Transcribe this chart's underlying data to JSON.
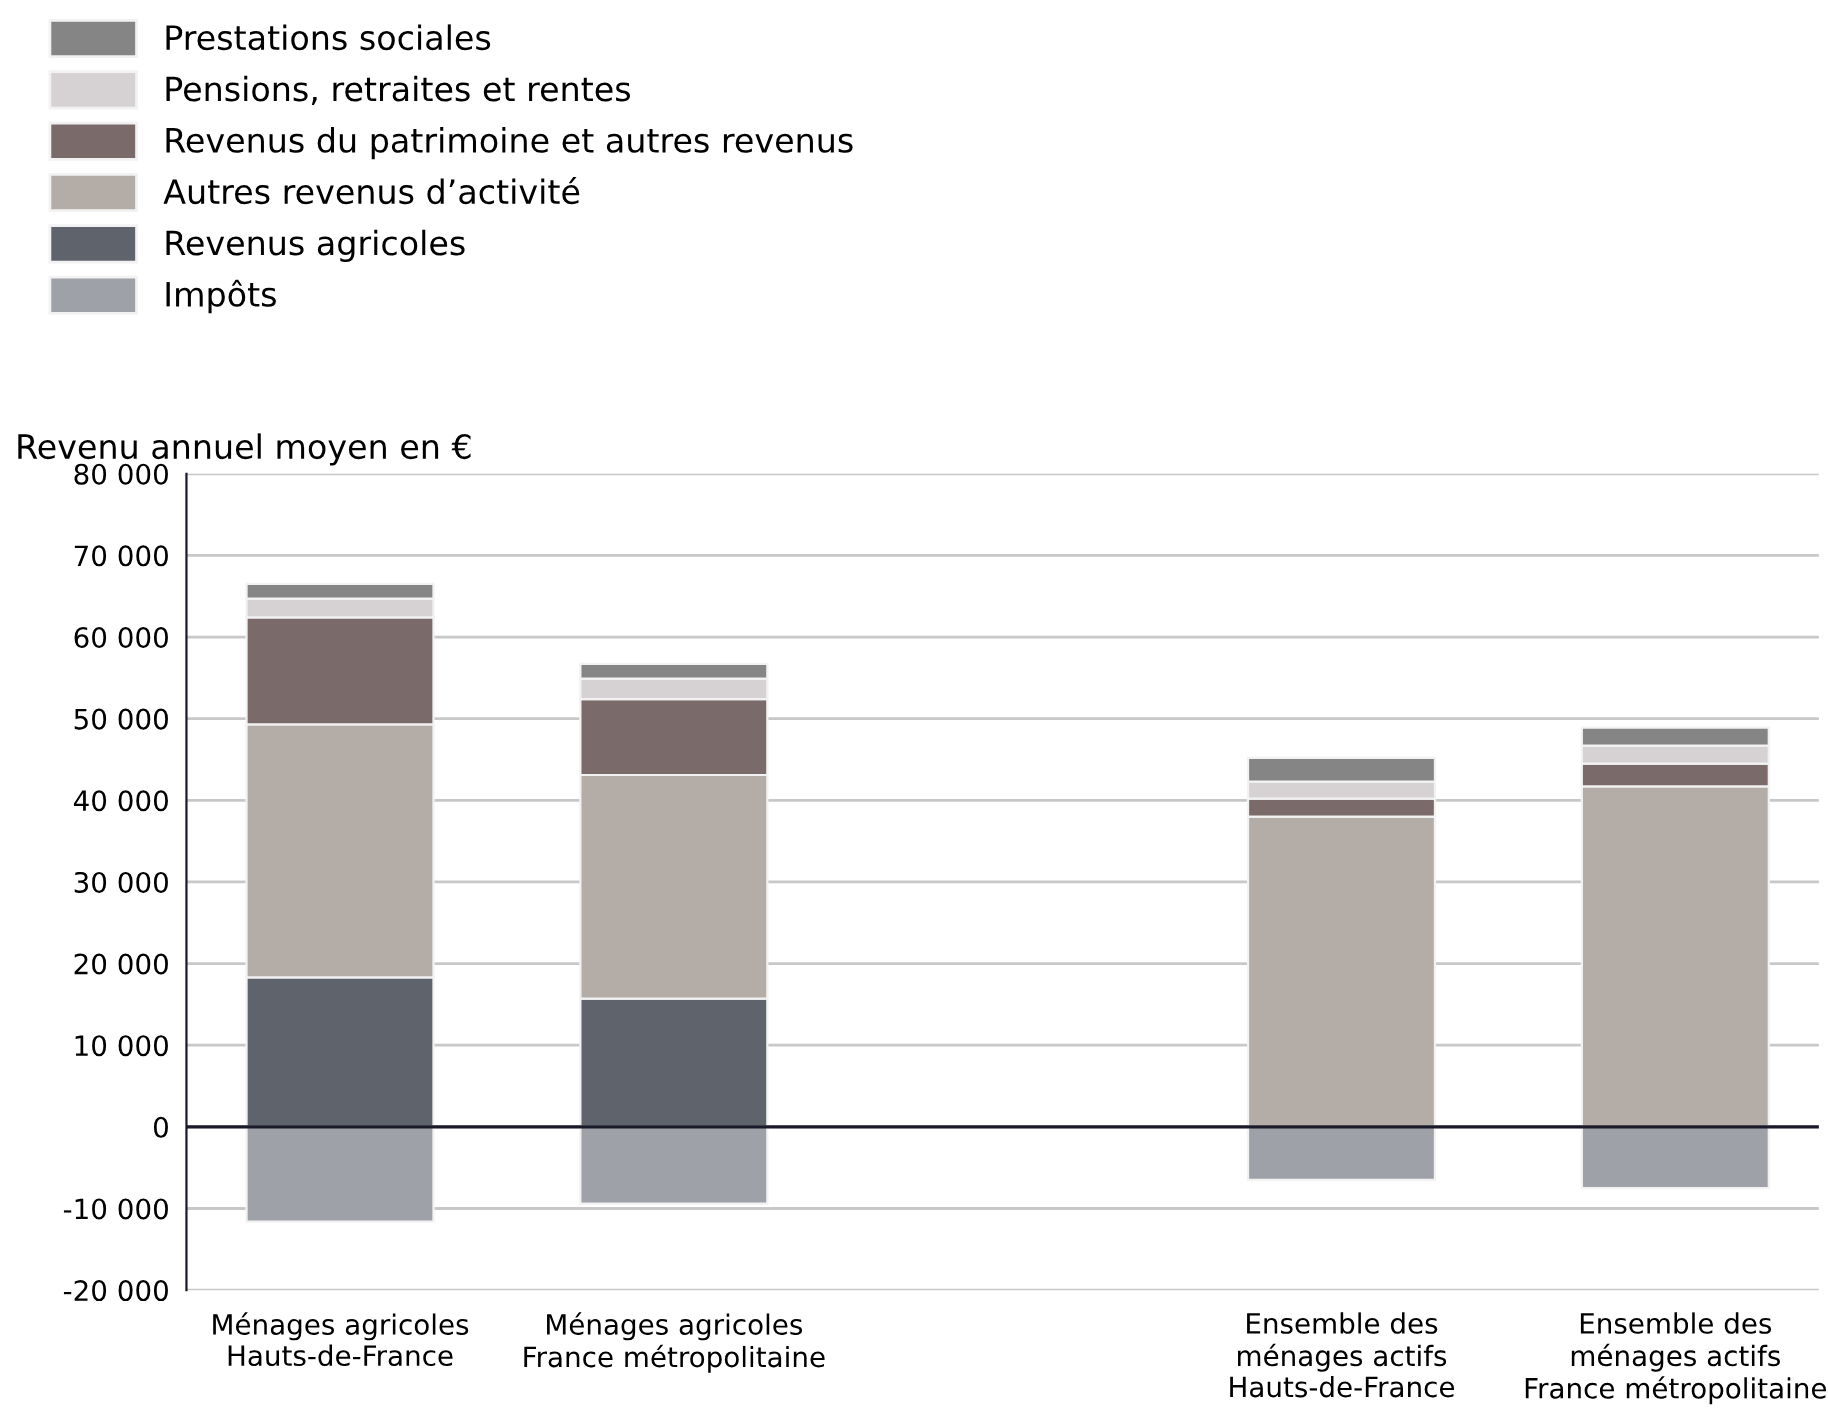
{
  "chart_data": {
    "type": "bar",
    "stacked": true,
    "ylabel": "Revenu annuel moyen en €",
    "categories": [
      "Ménages agricoles\nHauts-de-France",
      "Ménages agricoles\nFrance métropolitaine",
      null,
      "Ensemble des\nménages actifs\nHauts-de-France",
      "Ensemble des\nménages actifs\nFrance métropolitaine"
    ],
    "series": [
      {
        "name": "Revenus agricoles",
        "color": "#5f636b",
        "values": [
          18300,
          15700,
          null,
          0,
          0
        ]
      },
      {
        "name": "Autres revenus d’activité",
        "color": "#b4aca7",
        "values": [
          31000,
          27400,
          null,
          38000,
          41700
        ]
      },
      {
        "name": "Revenus du patrimoine et autres revenus",
        "color": "#7a6a6a",
        "values": [
          13100,
          9300,
          null,
          2200,
          2800
        ]
      },
      {
        "name": "Pensions, retraites et rentes",
        "color": "#d6d2d3",
        "values": [
          2300,
          2500,
          null,
          2100,
          2200
        ]
      },
      {
        "name": "Prestations sociales",
        "color": "#858585",
        "values": [
          1800,
          1800,
          null,
          2900,
          2200
        ]
      },
      {
        "name": "Impôts",
        "color": "#9ea1a8",
        "values": [
          -11600,
          -9400,
          null,
          -6500,
          -7500
        ]
      }
    ],
    "ylim": [
      -20000,
      80000
    ],
    "yticks": [
      {
        "value": -20000,
        "label": "-20 000"
      },
      {
        "value": -10000,
        "label": "-10 000"
      },
      0,
      {
        "value": 10000,
        "label": "10 000"
      },
      {
        "value": 20000,
        "label": "20 000"
      },
      {
        "value": 30000,
        "label": "30 000"
      },
      {
        "value": 40000,
        "label": "40 000"
      },
      {
        "value": 50000,
        "label": "50 000"
      },
      {
        "value": 60000,
        "label": "60 000"
      },
      {
        "value": 70000,
        "label": "70 000"
      },
      {
        "value": 80000,
        "label": "80 000"
      }
    ],
    "ref_lines": [
      {
        "axis": "y",
        "value": 0,
        "label": null,
        "color": "#1a1a2a"
      }
    ],
    "grid": "y",
    "legend": "top left"
  }
}
